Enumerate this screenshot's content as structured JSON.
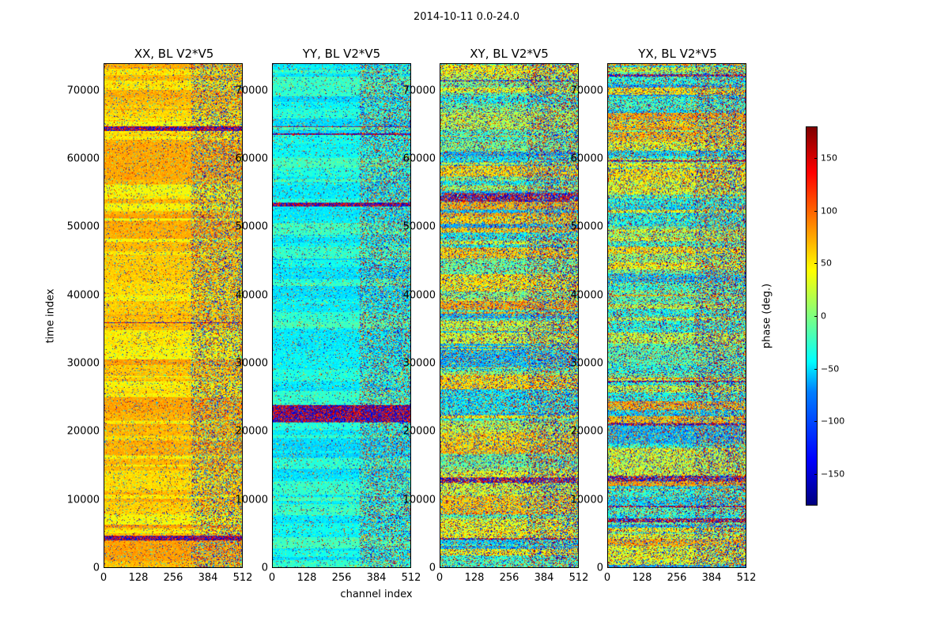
{
  "suptitle": "2014-10-11 0.0-24.0",
  "xlabel": "channel index",
  "ylabel": "time index",
  "colorbar_label": "phase (deg.)",
  "colors": {
    "axis": "#000000",
    "background": "#ffffff"
  },
  "chart_data": {
    "type": "heatmap",
    "colormap": "jet",
    "clim": [
      -180,
      180
    ],
    "colorbar_ticks": [
      150,
      100,
      50,
      0,
      -50,
      -100,
      -150
    ],
    "colorbar_tick_labels": [
      "150",
      "100",
      "50",
      "0",
      "−50",
      "−100",
      "−150"
    ],
    "xlim": [
      0,
      512
    ],
    "ylim": [
      0,
      74000
    ],
    "x_ticks": [
      "0",
      "128",
      "256",
      "384",
      "512"
    ],
    "y_ticks": [
      "0",
      "10000",
      "20000",
      "30000",
      "40000",
      "50000",
      "60000",
      "70000"
    ],
    "panels": [
      {
        "title": "XX, BL V2*V5",
        "dominant_phase": 60,
        "spread": 40
      },
      {
        "title": "YY, BL V2*V5",
        "dominant_phase": -40,
        "spread": 40
      },
      {
        "title": "XY, BL V2*V5",
        "dominant_phase": 0,
        "spread": 160
      },
      {
        "title": "YX, BL V2*V5",
        "dominant_phase": 0,
        "spread": 160
      }
    ]
  }
}
